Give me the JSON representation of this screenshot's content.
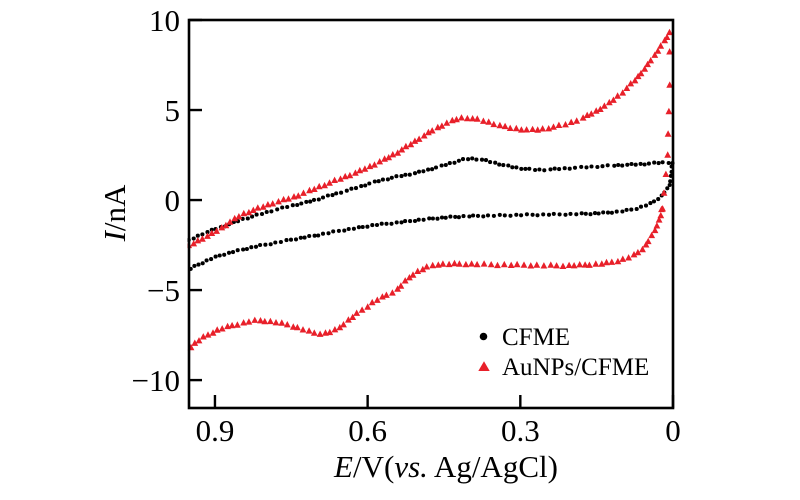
{
  "figure": {
    "background": "#ffffff",
    "frame_color": "#000000",
    "accent_red": "#e8202a",
    "marker_black": "#000000"
  },
  "chart_data": {
    "type": "scatter",
    "title": "",
    "xlabel_parts": {
      "e": "E",
      "mid": "/V(",
      "vs": "vs.",
      "rest": " Ag/AgCl)"
    },
    "ylabel_parts": {
      "i": "I",
      "rest": "/nA"
    },
    "xlim": [
      0.951,
      0
    ],
    "ylim": [
      -11.55,
      10
    ],
    "x_axis_reversed": true,
    "grid": false,
    "x_ticks": [
      0.9,
      0.6,
      0.3,
      0
    ],
    "x_tick_labels": [
      "0.9",
      "0.6",
      "0.3",
      "0"
    ],
    "y_ticks": [
      10,
      5,
      0,
      -5,
      -10
    ],
    "y_tick_labels": [
      "10",
      "5",
      "0",
      "−5",
      "−10"
    ],
    "legend": {
      "position": "lower right",
      "items": [
        {
          "label": "CFME",
          "marker": "circle",
          "color": "#000000"
        },
        {
          "label": "AuNPs/CFME",
          "marker": "triangle",
          "color": "#e8202a"
        }
      ]
    },
    "series": [
      {
        "name": "CFME",
        "marker": "circle",
        "color": "#000000",
        "marker_size": 2.05,
        "marker_spacing": 4.2,
        "segments": [
          [
            [
              0.951,
              -2.25
            ],
            [
              0.93,
              -1.95
            ],
            [
              0.9,
              -1.62
            ],
            [
              0.875,
              -1.38
            ],
            [
              0.851,
              -1.12
            ],
            [
              0.82,
              -0.86
            ],
            [
              0.786,
              -0.58
            ],
            [
              0.75,
              -0.32
            ],
            [
              0.719,
              -0.12
            ],
            [
              0.69,
              0.12
            ],
            [
              0.654,
              0.42
            ],
            [
              0.62,
              0.7
            ],
            [
              0.589,
              0.98
            ],
            [
              0.55,
              1.25
            ],
            [
              0.52,
              1.42
            ],
            [
              0.497,
              1.56
            ],
            [
              0.46,
              1.85
            ],
            [
              0.43,
              2.1
            ],
            [
              0.405,
              2.28
            ],
            [
              0.38,
              2.26
            ],
            [
              0.35,
              2.06
            ],
            [
              0.32,
              1.86
            ],
            [
              0.29,
              1.73
            ],
            [
              0.26,
              1.68
            ],
            [
              0.22,
              1.74
            ],
            [
              0.17,
              1.83
            ],
            [
              0.12,
              1.91
            ],
            [
              0.06,
              2.0
            ],
            [
              0.004,
              2.08
            ],
            [
              0.003,
              1.75
            ],
            [
              0.004,
              1.4
            ],
            [
              0.005,
              1.05
            ],
            [
              0.009,
              0.72
            ],
            [
              0.018,
              0.38
            ],
            [
              0.03,
              0.06
            ],
            [
              0.045,
              -0.2
            ],
            [
              0.07,
              -0.45
            ],
            [
              0.1,
              -0.62
            ],
            [
              0.14,
              -0.72
            ],
            [
              0.18,
              -0.77
            ],
            [
              0.23,
              -0.8
            ],
            [
              0.28,
              -0.82
            ],
            [
              0.33,
              -0.85
            ],
            [
              0.38,
              -0.88
            ],
            [
              0.42,
              -0.92
            ],
            [
              0.46,
              -1.0
            ],
            [
              0.497,
              -1.1
            ],
            [
              0.52,
              -1.18
            ],
            [
              0.55,
              -1.28
            ],
            [
              0.589,
              -1.4
            ],
            [
              0.62,
              -1.55
            ],
            [
              0.654,
              -1.7
            ],
            [
              0.69,
              -1.9
            ],
            [
              0.719,
              -2.05
            ],
            [
              0.75,
              -2.2
            ],
            [
              0.786,
              -2.4
            ],
            [
              0.82,
              -2.58
            ],
            [
              0.85,
              -2.78
            ],
            [
              0.89,
              -3.08
            ],
            [
              0.92,
              -3.42
            ],
            [
              0.951,
              -3.85
            ]
          ]
        ],
        "extra_points": []
      },
      {
        "name": "AuNPs/CFME",
        "marker": "triangle",
        "color": "#e8202a",
        "marker_size": 6.8,
        "marker_spacing": 4.8,
        "segments": [
          [
            [
              0.951,
              -2.55
            ],
            [
              0.93,
              -2.22
            ],
            [
              0.9,
              -1.78
            ],
            [
              0.875,
              -1.32
            ],
            [
              0.851,
              -0.88
            ],
            [
              0.82,
              -0.52
            ],
            [
              0.786,
              -0.18
            ],
            [
              0.75,
              0.12
            ],
            [
              0.719,
              0.45
            ],
            [
              0.69,
              0.78
            ],
            [
              0.654,
              1.18
            ],
            [
              0.62,
              1.55
            ],
            [
              0.589,
              1.95
            ],
            [
              0.55,
              2.5
            ],
            [
              0.51,
              3.2
            ],
            [
              0.47,
              3.9
            ],
            [
              0.44,
              4.32
            ],
            [
              0.415,
              4.55
            ],
            [
              0.39,
              4.5
            ],
            [
              0.36,
              4.3
            ],
            [
              0.33,
              4.06
            ],
            [
              0.3,
              3.93
            ],
            [
              0.27,
              3.9
            ],
            [
              0.24,
              4.02
            ],
            [
              0.2,
              4.3
            ],
            [
              0.16,
              4.8
            ],
            [
              0.12,
              5.5
            ],
            [
              0.08,
              6.5
            ],
            [
              0.05,
              7.5
            ],
            [
              0.02,
              8.7
            ],
            [
              0.005,
              9.35
            ]
          ],
          [
            [
              0.022,
              -0.55
            ],
            [
              0.031,
              -1.4
            ],
            [
              0.051,
              -2.4
            ],
            [
              0.07,
              -2.95
            ],
            [
              0.098,
              -3.3
            ],
            [
              0.13,
              -3.5
            ],
            [
              0.17,
              -3.6
            ],
            [
              0.22,
              -3.65
            ],
            [
              0.28,
              -3.62
            ],
            [
              0.34,
              -3.6
            ],
            [
              0.4,
              -3.56
            ],
            [
              0.44,
              -3.56
            ],
            [
              0.47,
              -3.62
            ],
            [
              0.5,
              -3.95
            ],
            [
              0.52,
              -4.35
            ],
            [
              0.544,
              -5.0
            ],
            [
              0.584,
              -5.6
            ],
            [
              0.63,
              -6.5
            ],
            [
              0.662,
              -7.2
            ],
            [
              0.696,
              -7.42
            ],
            [
              0.735,
              -7.12
            ],
            [
              0.768,
              -6.86
            ],
            [
              0.814,
              -6.7
            ],
            [
              0.847,
              -6.85
            ],
            [
              0.892,
              -7.2
            ],
            [
              0.932,
              -7.8
            ],
            [
              0.951,
              -8.3
            ]
          ]
        ],
        "extra_points": [
          [
            0.006,
            8.2
          ],
          [
            0.007,
            6.4
          ],
          [
            0.008,
            4.9
          ],
          [
            0.009,
            3.7
          ],
          [
            0.011,
            2.5
          ],
          [
            0.014,
            1.4
          ],
          [
            0.017,
            0.4
          ],
          [
            0.021,
            -0.5
          ]
        ]
      }
    ]
  }
}
